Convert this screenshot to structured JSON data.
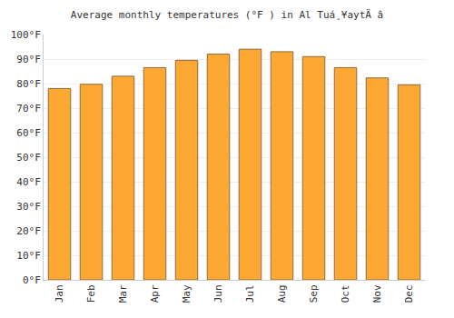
{
  "chart_data": {
    "type": "bar",
    "title": "Average monthly temperatures (°F ) in Al Tuá¸¥aytÄ â",
    "categories": [
      "Jan",
      "Feb",
      "Mar",
      "Apr",
      "May",
      "Jun",
      "Jul",
      "Aug",
      "Sep",
      "Oct",
      "Nov",
      "Dec"
    ],
    "values": [
      78,
      79.7,
      83,
      86.5,
      89.5,
      92,
      94,
      93,
      91,
      86.5,
      82.3,
      79.5
    ],
    "color": "#fca832",
    "ylim": [
      0,
      100
    ],
    "yticks": [
      {
        "value": 0,
        "label": "0°F"
      },
      {
        "value": 10,
        "label": "10°F"
      },
      {
        "value": 20,
        "label": "20°F"
      },
      {
        "value": 30,
        "label": "30°F"
      },
      {
        "value": 40,
        "label": "40°F"
      },
      {
        "value": 50,
        "label": "50°F"
      },
      {
        "value": 60,
        "label": "60°F"
      },
      {
        "value": 70,
        "label": "70°F"
      },
      {
        "value": 80,
        "label": "80°F"
      },
      {
        "value": 90,
        "label": "90°F"
      },
      {
        "value": 100,
        "label": "100°F"
      }
    ],
    "grid": true
  }
}
